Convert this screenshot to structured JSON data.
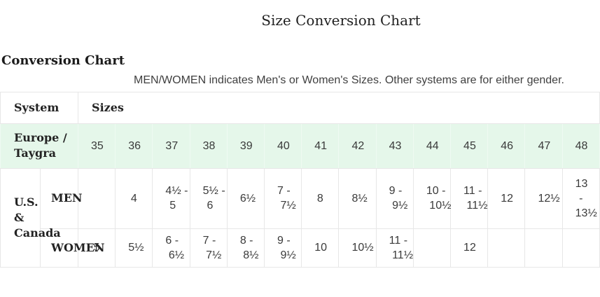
{
  "page": {
    "title": "Size Conversion Chart",
    "section_heading": "Conversion Chart",
    "note": "MEN/WOMEN indicates Men's or Women's Sizes. Other systems are for either gender."
  },
  "table": {
    "header": {
      "system": "System",
      "sizes": "Sizes"
    },
    "europe": {
      "label": "Europe / Taygra",
      "values": [
        "35",
        "36",
        "37",
        "38",
        "39",
        "40",
        "41",
        "42",
        "43",
        "44",
        "45",
        "46",
        "47",
        "48"
      ]
    },
    "us_label": "U.S. & Canada",
    "men": {
      "label": "MEN",
      "values": [
        "",
        "4",
        "4½ - 5",
        "5½ - 6",
        "6½",
        "7 - 7½",
        "8",
        "8½",
        "9 - 9½",
        "10 - 10½",
        "11 - 11½",
        "12",
        "12½",
        "13 - 13½"
      ]
    },
    "women": {
      "label": "WOMEN",
      "values": [
        "5",
        "5½",
        "6 - 6½",
        "7 - 7½",
        "8 - 8½",
        "9 - 9½",
        "10",
        "10½",
        "11 - 11½",
        "",
        "12",
        "",
        "",
        ""
      ]
    },
    "colors": {
      "highlight_row_bg": "#e5f7ea",
      "border": "#e7e7e7",
      "value_text": "#3a3a3a",
      "heading_text": "#1f1f1f"
    }
  }
}
